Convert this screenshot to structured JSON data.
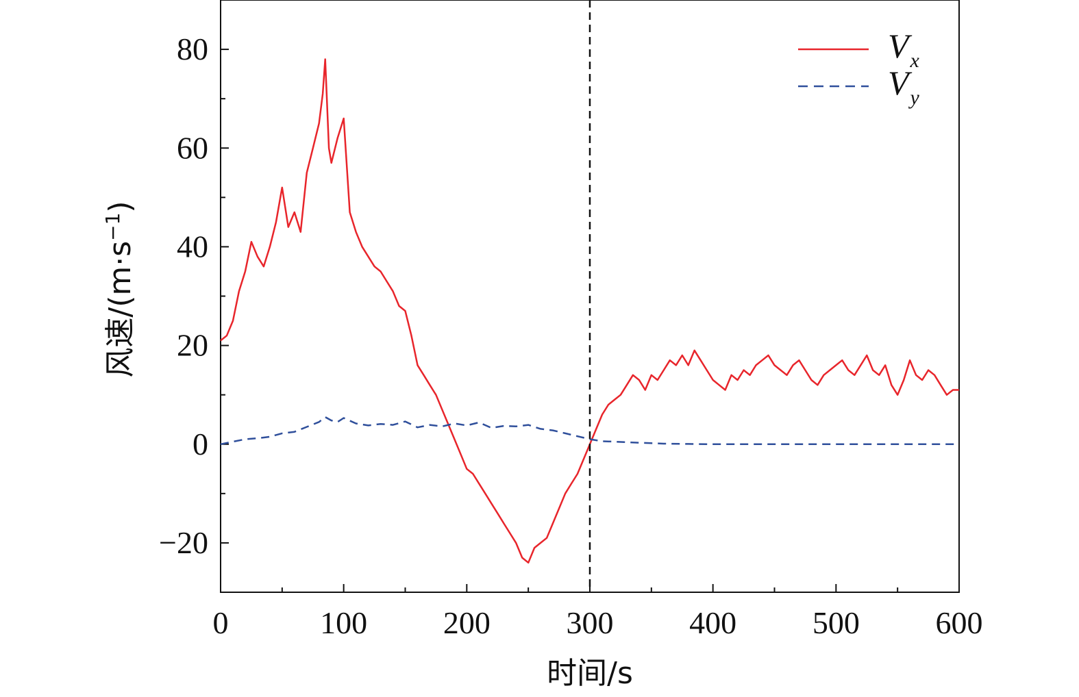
{
  "chart_data": {
    "type": "line",
    "title": "",
    "xlabel": "时间/s",
    "ylabel": "风速/(m·s",
    "ylabel_sup": "−1",
    "ylabel_close": ")",
    "xlim": [
      0,
      600
    ],
    "ylim": [
      -30,
      90
    ],
    "xticks": [
      0,
      100,
      200,
      300,
      400,
      500,
      600
    ],
    "xtick_labels": [
      "0",
      "100",
      "200",
      "300",
      "400",
      "500",
      "600"
    ],
    "yticks": [
      -20,
      0,
      20,
      40,
      60,
      80
    ],
    "ytick_labels": [
      "−20",
      "0",
      "20",
      "40",
      "60",
      "80"
    ],
    "grid": false,
    "legend_position": "top-right",
    "vline_x": 300,
    "colors": {
      "vx": "#e8252b",
      "vy": "#2f4f9b",
      "vline": "#111111"
    },
    "series": [
      {
        "name": "V",
        "subscript": "x",
        "style": "solid",
        "x": [
          0,
          5,
          10,
          15,
          20,
          25,
          30,
          35,
          40,
          45,
          50,
          55,
          60,
          65,
          70,
          75,
          80,
          83,
          85,
          88,
          90,
          95,
          100,
          105,
          110,
          115,
          120,
          125,
          130,
          135,
          140,
          145,
          150,
          155,
          160,
          165,
          170,
          175,
          180,
          185,
          190,
          195,
          200,
          205,
          210,
          215,
          220,
          225,
          230,
          235,
          240,
          245,
          250,
          255,
          260,
          265,
          270,
          275,
          280,
          285,
          290,
          295,
          300,
          305,
          310,
          315,
          320,
          325,
          330,
          335,
          340,
          345,
          350,
          355,
          360,
          365,
          370,
          375,
          380,
          385,
          390,
          395,
          400,
          405,
          410,
          415,
          420,
          425,
          430,
          435,
          440,
          445,
          450,
          455,
          460,
          465,
          470,
          475,
          480,
          485,
          490,
          495,
          500,
          505,
          510,
          515,
          520,
          525,
          530,
          535,
          540,
          545,
          550,
          555,
          560,
          565,
          570,
          575,
          580,
          585,
          590,
          595,
          600
        ],
        "y": [
          21,
          22,
          25,
          31,
          35,
          41,
          38,
          36,
          40,
          45,
          52,
          44,
          47,
          43,
          55,
          60,
          65,
          71,
          78,
          60,
          57,
          62,
          66,
          47,
          43,
          40,
          38,
          36,
          35,
          33,
          31,
          28,
          27,
          22,
          16,
          14,
          12,
          10,
          7,
          4,
          1,
          -2,
          -5,
          -6,
          -8,
          -10,
          -12,
          -14,
          -16,
          -18,
          -20,
          -23,
          -24,
          -21,
          -20,
          -19,
          -16,
          -13,
          -10,
          -8,
          -6,
          -3,
          0,
          3,
          6,
          8,
          9,
          10,
          12,
          14,
          13,
          11,
          14,
          13,
          15,
          17,
          16,
          18,
          16,
          19,
          17,
          15,
          13,
          12,
          11,
          14,
          13,
          15,
          14,
          16,
          17,
          18,
          16,
          15,
          14,
          16,
          17,
          15,
          13,
          12,
          14,
          15,
          16,
          17,
          15,
          14,
          16,
          18,
          15,
          14,
          16,
          12,
          10,
          13,
          17,
          14,
          13,
          15,
          14,
          12,
          10,
          11,
          11
        ]
      },
      {
        "name": "V",
        "subscript": "y",
        "style": "dashed",
        "x": [
          0,
          10,
          20,
          30,
          40,
          50,
          60,
          70,
          80,
          85,
          90,
          95,
          100,
          110,
          120,
          130,
          140,
          150,
          160,
          170,
          180,
          190,
          200,
          210,
          220,
          230,
          240,
          250,
          260,
          270,
          280,
          290,
          300,
          310,
          320,
          330,
          340,
          350,
          360,
          380,
          400,
          450,
          500,
          550,
          600
        ],
        "y": [
          0,
          0.5,
          1,
          1.2,
          1.5,
          2.2,
          2.5,
          3.5,
          4.5,
          5.5,
          4.8,
          4.5,
          5.3,
          4.2,
          3.8,
          4.1,
          3.9,
          4.6,
          3.4,
          3.9,
          3.6,
          4.2,
          3.8,
          4.4,
          3.3,
          3.7,
          3.6,
          3.9,
          3.1,
          2.8,
          2.2,
          1.6,
          1.0,
          0.6,
          0.5,
          0.4,
          0.3,
          0.2,
          0.1,
          0.05,
          0,
          0,
          0,
          0,
          0
        ]
      }
    ]
  }
}
